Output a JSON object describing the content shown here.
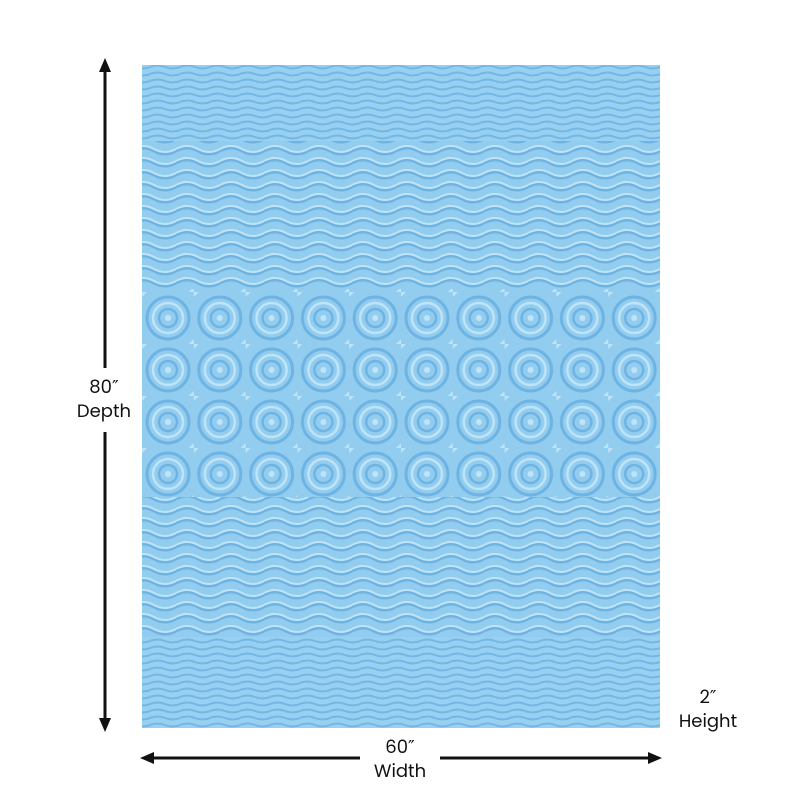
{
  "dimensions": {
    "depth": {
      "size": "80″",
      "label": "Depth"
    },
    "width": {
      "size": "60″",
      "label": "Width"
    },
    "height": {
      "size": "2″",
      "label": "Height"
    }
  }
}
